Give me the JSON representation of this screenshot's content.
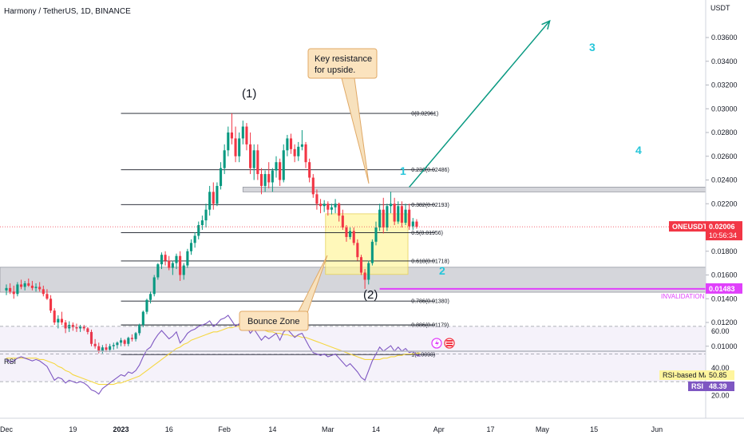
{
  "header": {
    "title": "Harmony / TetherUS, 1D, BINANCE"
  },
  "price_axis": {
    "unit": "USDT",
    "ticks": [
      {
        "v": 0.036,
        "label": "0.03600"
      },
      {
        "v": 0.034,
        "label": "0.03400"
      },
      {
        "v": 0.032,
        "label": "0.03200"
      },
      {
        "v": 0.03,
        "label": "0.03000"
      },
      {
        "v": 0.028,
        "label": "0.02800"
      },
      {
        "v": 0.026,
        "label": "0.02600"
      },
      {
        "v": 0.024,
        "label": "0.02400"
      },
      {
        "v": 0.022,
        "label": "0.02200"
      },
      {
        "v": 0.018,
        "label": "0.01800"
      },
      {
        "v": 0.016,
        "label": "0.01600"
      },
      {
        "v": 0.014,
        "label": "0.01400"
      },
      {
        "v": 0.012,
        "label": "0.01200"
      },
      {
        "v": 0.01,
        "label": "0.01000"
      }
    ]
  },
  "time_axis": {
    "ticks": [
      {
        "i": 0,
        "label": "Dec"
      },
      {
        "i": 18,
        "label": "19"
      },
      {
        "i": 31,
        "label": "2023"
      },
      {
        "i": 44,
        "label": "16"
      },
      {
        "i": 59,
        "label": "Feb"
      },
      {
        "i": 72,
        "label": "14"
      },
      {
        "i": 87,
        "label": "Mar"
      },
      {
        "i": 100,
        "label": "14"
      },
      {
        "i": 117,
        "label": "Apr"
      },
      {
        "i": 131,
        "label": "17"
      },
      {
        "i": 145,
        "label": "May"
      },
      {
        "i": 159,
        "label": "15"
      },
      {
        "i": 176,
        "label": "Jun"
      }
    ]
  },
  "price_tags": {
    "last": {
      "symbol": "ONEUSDT",
      "price": "0.02006",
      "countdown": "10:56:34",
      "v": 0.02006,
      "color": "#f23645"
    },
    "invalidation": {
      "price": "0.01483",
      "label": "INVALIDATION",
      "v": 0.01483,
      "color": "#e040fb"
    }
  },
  "annotations": {
    "resistance_note": {
      "line1": "Key resistance",
      "line2": "for upside."
    },
    "bounce_note": "Bounce Zone",
    "wave_1": "(1)",
    "wave_2": "(2)",
    "wave_cyan_1": "1",
    "wave_cyan_2": "2",
    "wave_cyan_3": "3",
    "wave_cyan_4": "4"
  },
  "rsi_panel": {
    "label": "RSI",
    "ma_label": "RSI-based MA",
    "ma_value": "50.85",
    "rsi_label": "RSI",
    "rsi_value": "48.39",
    "ticks": [
      {
        "v": 60,
        "label": "60.00"
      },
      {
        "v": 40,
        "label": "40.00"
      },
      {
        "v": 20,
        "label": "20.00"
      }
    ],
    "upper_band": 70,
    "mid_band": 50,
    "lower_band": 30
  },
  "chart_data": {
    "type": "candlestick",
    "title": "Harmony / TetherUS, 1D, BINANCE",
    "ylabel": "USDT",
    "ylim": [
      0.0093,
      0.0385
    ],
    "fib_levels": [
      {
        "ratio": "0",
        "price": "0.02961",
        "v": 0.02961
      },
      {
        "ratio": "0.236",
        "price": "0.02486",
        "v": 0.02486
      },
      {
        "ratio": "0.382",
        "price": "0.02193",
        "v": 0.02193
      },
      {
        "ratio": "0.5",
        "price": "0.01956",
        "v": 0.01956
      },
      {
        "ratio": "0.618",
        "price": "0.01718",
        "v": 0.01718
      },
      {
        "ratio": "0.786",
        "price": "0.01380",
        "v": 0.0138
      },
      {
        "ratio": "0.886",
        "price": "0.01179",
        "v": 0.01179
      },
      {
        "ratio": "1",
        "price": "0.0093",
        "v": 0.0093
      }
    ],
    "zones": {
      "resistance": [
        0.023,
        0.0234
      ],
      "support": [
        0.01455,
        0.01665
      ],
      "bounce_zone": {
        "price": [
          0.01605,
          0.02115
        ],
        "days": [
          87,
          108
        ]
      }
    },
    "candles": [
      {
        "o": 0.0147,
        "h": 0.0152,
        "l": 0.0143,
        "c": 0.0149
      },
      {
        "o": 0.0149,
        "h": 0.0153,
        "l": 0.0144,
        "c": 0.0146
      },
      {
        "o": 0.0146,
        "h": 0.0151,
        "l": 0.014,
        "c": 0.0144
      },
      {
        "o": 0.0144,
        "h": 0.0154,
        "l": 0.0142,
        "c": 0.0152
      },
      {
        "o": 0.0152,
        "h": 0.0156,
        "l": 0.0148,
        "c": 0.015
      },
      {
        "o": 0.015,
        "h": 0.0155,
        "l": 0.0147,
        "c": 0.0153
      },
      {
        "o": 0.0153,
        "h": 0.0157,
        "l": 0.015,
        "c": 0.0151
      },
      {
        "o": 0.0151,
        "h": 0.0155,
        "l": 0.0147,
        "c": 0.0149
      },
      {
        "o": 0.0149,
        "h": 0.0153,
        "l": 0.0146,
        "c": 0.015
      },
      {
        "o": 0.015,
        "h": 0.0154,
        "l": 0.0146,
        "c": 0.0148
      },
      {
        "o": 0.0148,
        "h": 0.0151,
        "l": 0.0142,
        "c": 0.0144
      },
      {
        "o": 0.0144,
        "h": 0.0148,
        "l": 0.0139,
        "c": 0.014
      },
      {
        "o": 0.014,
        "h": 0.0143,
        "l": 0.0128,
        "c": 0.013
      },
      {
        "o": 0.013,
        "h": 0.0132,
        "l": 0.0118,
        "c": 0.012
      },
      {
        "o": 0.012,
        "h": 0.0126,
        "l": 0.0115,
        "c": 0.0123
      },
      {
        "o": 0.0123,
        "h": 0.0129,
        "l": 0.0118,
        "c": 0.012
      },
      {
        "o": 0.012,
        "h": 0.0122,
        "l": 0.0111,
        "c": 0.0115
      },
      {
        "o": 0.0115,
        "h": 0.0121,
        "l": 0.0112,
        "c": 0.0118
      },
      {
        "o": 0.0118,
        "h": 0.012,
        "l": 0.0113,
        "c": 0.0116
      },
      {
        "o": 0.0116,
        "h": 0.0119,
        "l": 0.0112,
        "c": 0.0115
      },
      {
        "o": 0.0115,
        "h": 0.0118,
        "l": 0.0112,
        "c": 0.01165
      },
      {
        "o": 0.01165,
        "h": 0.0118,
        "l": 0.0113,
        "c": 0.0115
      },
      {
        "o": 0.0115,
        "h": 0.0116,
        "l": 0.011,
        "c": 0.0112
      },
      {
        "o": 0.0112,
        "h": 0.0114,
        "l": 0.01,
        "c": 0.0102
      },
      {
        "o": 0.0102,
        "h": 0.0106,
        "l": 0.0098,
        "c": 0.01
      },
      {
        "o": 0.01,
        "h": 0.0103,
        "l": 0.0094,
        "c": 0.0096
      },
      {
        "o": 0.0096,
        "h": 0.0101,
        "l": 0.0094,
        "c": 0.0099
      },
      {
        "o": 0.0099,
        "h": 0.0102,
        "l": 0.0095,
        "c": 0.0097
      },
      {
        "o": 0.0097,
        "h": 0.0102,
        "l": 0.0095,
        "c": 0.01
      },
      {
        "o": 0.01,
        "h": 0.0103,
        "l": 0.0097,
        "c": 0.0101
      },
      {
        "o": 0.0101,
        "h": 0.0104,
        "l": 0.0098,
        "c": 0.0103
      },
      {
        "o": 0.0103,
        "h": 0.0107,
        "l": 0.01,
        "c": 0.0105
      },
      {
        "o": 0.0105,
        "h": 0.0106,
        "l": 0.01,
        "c": 0.0102
      },
      {
        "o": 0.0102,
        "h": 0.0108,
        "l": 0.01,
        "c": 0.0107
      },
      {
        "o": 0.0107,
        "h": 0.011,
        "l": 0.0104,
        "c": 0.0106
      },
      {
        "o": 0.0106,
        "h": 0.0112,
        "l": 0.0104,
        "c": 0.0111
      },
      {
        "o": 0.0111,
        "h": 0.0119,
        "l": 0.0109,
        "c": 0.0118
      },
      {
        "o": 0.0118,
        "h": 0.013,
        "l": 0.0116,
        "c": 0.0129
      },
      {
        "o": 0.0129,
        "h": 0.014,
        "l": 0.0127,
        "c": 0.0139
      },
      {
        "o": 0.0139,
        "h": 0.0146,
        "l": 0.0136,
        "c": 0.0144
      },
      {
        "o": 0.0144,
        "h": 0.016,
        "l": 0.0142,
        "c": 0.0158
      },
      {
        "o": 0.0158,
        "h": 0.017,
        "l": 0.0156,
        "c": 0.0169
      },
      {
        "o": 0.0169,
        "h": 0.0179,
        "l": 0.0165,
        "c": 0.0177
      },
      {
        "o": 0.0177,
        "h": 0.018,
        "l": 0.0168,
        "c": 0.0172
      },
      {
        "o": 0.0172,
        "h": 0.0176,
        "l": 0.0164,
        "c": 0.0166
      },
      {
        "o": 0.0166,
        "h": 0.0172,
        "l": 0.016,
        "c": 0.017
      },
      {
        "o": 0.017,
        "h": 0.0178,
        "l": 0.0165,
        "c": 0.0176
      },
      {
        "o": 0.0176,
        "h": 0.018,
        "l": 0.0155,
        "c": 0.016
      },
      {
        "o": 0.016,
        "h": 0.017,
        "l": 0.0156,
        "c": 0.0168
      },
      {
        "o": 0.0168,
        "h": 0.0182,
        "l": 0.0166,
        "c": 0.018
      },
      {
        "o": 0.018,
        "h": 0.019,
        "l": 0.0177,
        "c": 0.0187
      },
      {
        "o": 0.0187,
        "h": 0.0196,
        "l": 0.0183,
        "c": 0.0193
      },
      {
        "o": 0.0193,
        "h": 0.0205,
        "l": 0.019,
        "c": 0.0202
      },
      {
        "o": 0.0202,
        "h": 0.021,
        "l": 0.0198,
        "c": 0.0206
      },
      {
        "o": 0.0206,
        "h": 0.022,
        "l": 0.02,
        "c": 0.0215
      },
      {
        "o": 0.0215,
        "h": 0.0235,
        "l": 0.021,
        "c": 0.023
      },
      {
        "o": 0.023,
        "h": 0.0238,
        "l": 0.0215,
        "c": 0.022
      },
      {
        "o": 0.022,
        "h": 0.0238,
        "l": 0.0218,
        "c": 0.0235
      },
      {
        "o": 0.0235,
        "h": 0.0255,
        "l": 0.0232,
        "c": 0.025
      },
      {
        "o": 0.025,
        "h": 0.027,
        "l": 0.0245,
        "c": 0.0265
      },
      {
        "o": 0.0265,
        "h": 0.0285,
        "l": 0.026,
        "c": 0.028
      },
      {
        "o": 0.028,
        "h": 0.02961,
        "l": 0.027,
        "c": 0.0275
      },
      {
        "o": 0.0275,
        "h": 0.0285,
        "l": 0.0255,
        "c": 0.026
      },
      {
        "o": 0.026,
        "h": 0.028,
        "l": 0.0255,
        "c": 0.0275
      },
      {
        "o": 0.0275,
        "h": 0.029,
        "l": 0.027,
        "c": 0.0285
      },
      {
        "o": 0.0285,
        "h": 0.0288,
        "l": 0.0265,
        "c": 0.027
      },
      {
        "o": 0.027,
        "h": 0.028,
        "l": 0.0245,
        "c": 0.025
      },
      {
        "o": 0.025,
        "h": 0.027,
        "l": 0.024,
        "c": 0.0265
      },
      {
        "o": 0.0265,
        "h": 0.027,
        "l": 0.024,
        "c": 0.0245
      },
      {
        "o": 0.0245,
        "h": 0.025,
        "l": 0.0228,
        "c": 0.0235
      },
      {
        "o": 0.0235,
        "h": 0.0248,
        "l": 0.023,
        "c": 0.0245
      },
      {
        "o": 0.0245,
        "h": 0.0255,
        "l": 0.0233,
        "c": 0.0238
      },
      {
        "o": 0.0238,
        "h": 0.025,
        "l": 0.023,
        "c": 0.0248
      },
      {
        "o": 0.0248,
        "h": 0.026,
        "l": 0.0242,
        "c": 0.0255
      },
      {
        "o": 0.0255,
        "h": 0.0258,
        "l": 0.0235,
        "c": 0.024
      },
      {
        "o": 0.024,
        "h": 0.027,
        "l": 0.0238,
        "c": 0.0265
      },
      {
        "o": 0.0265,
        "h": 0.0278,
        "l": 0.026,
        "c": 0.0275
      },
      {
        "o": 0.0275,
        "h": 0.0279,
        "l": 0.0262,
        "c": 0.0266
      },
      {
        "o": 0.0266,
        "h": 0.027,
        "l": 0.0255,
        "c": 0.026
      },
      {
        "o": 0.026,
        "h": 0.0272,
        "l": 0.0256,
        "c": 0.0268
      },
      {
        "o": 0.0268,
        "h": 0.0282,
        "l": 0.0265,
        "c": 0.027
      },
      {
        "o": 0.027,
        "h": 0.0272,
        "l": 0.025,
        "c": 0.0255
      },
      {
        "o": 0.0255,
        "h": 0.0258,
        "l": 0.0238,
        "c": 0.0242
      },
      {
        "o": 0.0242,
        "h": 0.0245,
        "l": 0.0225,
        "c": 0.0228
      },
      {
        "o": 0.0228,
        "h": 0.0232,
        "l": 0.0215,
        "c": 0.022
      },
      {
        "o": 0.022,
        "h": 0.0224,
        "l": 0.0212,
        "c": 0.0218
      },
      {
        "o": 0.0218,
        "h": 0.0223,
        "l": 0.0213,
        "c": 0.022
      },
      {
        "o": 0.022,
        "h": 0.0222,
        "l": 0.021,
        "c": 0.0215
      },
      {
        "o": 0.0215,
        "h": 0.022,
        "l": 0.0211,
        "c": 0.0217
      },
      {
        "o": 0.0217,
        "h": 0.0224,
        "l": 0.0212,
        "c": 0.022
      },
      {
        "o": 0.022,
        "h": 0.0221,
        "l": 0.0205,
        "c": 0.021
      },
      {
        "o": 0.021,
        "h": 0.0215,
        "l": 0.0198,
        "c": 0.02
      },
      {
        "o": 0.02,
        "h": 0.0202,
        "l": 0.0188,
        "c": 0.0192
      },
      {
        "o": 0.0192,
        "h": 0.02,
        "l": 0.019,
        "c": 0.0197
      },
      {
        "o": 0.0197,
        "h": 0.02,
        "l": 0.0185,
        "c": 0.0187
      },
      {
        "o": 0.0187,
        "h": 0.019,
        "l": 0.0172,
        "c": 0.0175
      },
      {
        "o": 0.0175,
        "h": 0.0177,
        "l": 0.016,
        "c": 0.0162
      },
      {
        "o": 0.0162,
        "h": 0.0165,
        "l": 0.01483,
        "c": 0.0156
      },
      {
        "o": 0.0156,
        "h": 0.0172,
        "l": 0.0152,
        "c": 0.017
      },
      {
        "o": 0.017,
        "h": 0.019,
        "l": 0.0168,
        "c": 0.0188
      },
      {
        "o": 0.0188,
        "h": 0.0205,
        "l": 0.0185,
        "c": 0.02
      },
      {
        "o": 0.02,
        "h": 0.022,
        "l": 0.0197,
        "c": 0.0215
      },
      {
        "o": 0.0215,
        "h": 0.0225,
        "l": 0.0195,
        "c": 0.02
      },
      {
        "o": 0.02,
        "h": 0.022,
        "l": 0.0197,
        "c": 0.0218
      },
      {
        "o": 0.0218,
        "h": 0.023,
        "l": 0.0212,
        "c": 0.022
      },
      {
        "o": 0.022,
        "h": 0.0225,
        "l": 0.0202,
        "c": 0.0205
      },
      {
        "o": 0.0205,
        "h": 0.0222,
        "l": 0.0203,
        "c": 0.0218
      },
      {
        "o": 0.0218,
        "h": 0.0222,
        "l": 0.02,
        "c": 0.0204
      },
      {
        "o": 0.0204,
        "h": 0.022,
        "l": 0.0202,
        "c": 0.0215
      },
      {
        "o": 0.0215,
        "h": 0.022,
        "l": 0.0198,
        "c": 0.0201
      },
      {
        "o": 0.0201,
        "h": 0.0208,
        "l": 0.0198,
        "c": 0.0205
      },
      {
        "o": 0.0205,
        "h": 0.0207,
        "l": 0.0199,
        "c": 0.02006
      }
    ],
    "projection": {
      "from": {
        "i": 109,
        "v": 0.0234
      },
      "to": {
        "i": 147,
        "v": 0.0374
      }
    },
    "rsi": [
      46,
      44,
      45,
      47,
      48,
      47,
      46,
      45,
      46,
      45,
      43,
      41,
      36,
      31,
      33,
      32,
      29,
      31,
      30,
      29,
      30,
      29,
      27,
      24,
      23,
      21,
      25,
      27,
      29,
      31,
      33,
      35,
      34,
      37,
      36,
      38,
      42,
      48,
      53,
      55,
      60,
      64,
      67,
      64,
      61,
      63,
      66,
      58,
      61,
      65,
      67,
      68,
      70,
      71,
      72,
      74,
      70,
      72,
      75,
      76,
      78,
      74,
      70,
      72,
      74,
      70,
      65,
      68,
      64,
      60,
      63,
      61,
      63,
      65,
      60,
      66,
      68,
      65,
      62,
      64,
      65,
      60,
      55,
      51,
      50,
      49,
      50,
      48,
      49,
      50,
      47,
      44,
      41,
      43,
      40,
      37,
      33,
      31,
      38,
      45,
      50,
      55,
      52,
      54,
      56,
      52,
      55,
      52,
      54,
      51,
      52,
      49,
      48.39
    ],
    "rsi_ma": [
      47,
      47,
      47,
      47,
      47,
      47,
      47,
      47,
      47,
      46,
      46,
      45,
      44,
      43,
      41,
      40,
      38,
      37,
      35,
      34,
      33,
      32,
      31,
      30,
      29,
      28,
      28,
      28,
      28,
      28,
      29,
      29,
      30,
      31,
      32,
      33,
      34,
      36,
      38,
      40,
      42,
      44,
      46,
      48,
      50,
      52,
      54,
      55,
      57,
      58,
      60,
      61,
      62,
      63,
      64,
      65,
      66,
      66,
      67,
      68,
      69,
      69,
      70,
      70,
      70,
      70,
      70,
      69,
      69,
      68,
      67,
      66,
      66,
      65,
      65,
      64,
      64,
      63,
      63,
      63,
      62,
      62,
      61,
      60,
      59,
      58,
      57,
      56,
      55,
      54,
      53,
      52,
      51,
      50,
      49,
      48,
      47,
      46,
      46,
      46,
      46,
      46,
      47,
      47,
      48,
      48,
      49,
      49,
      50,
      50,
      50,
      50.5,
      50.85
    ]
  }
}
